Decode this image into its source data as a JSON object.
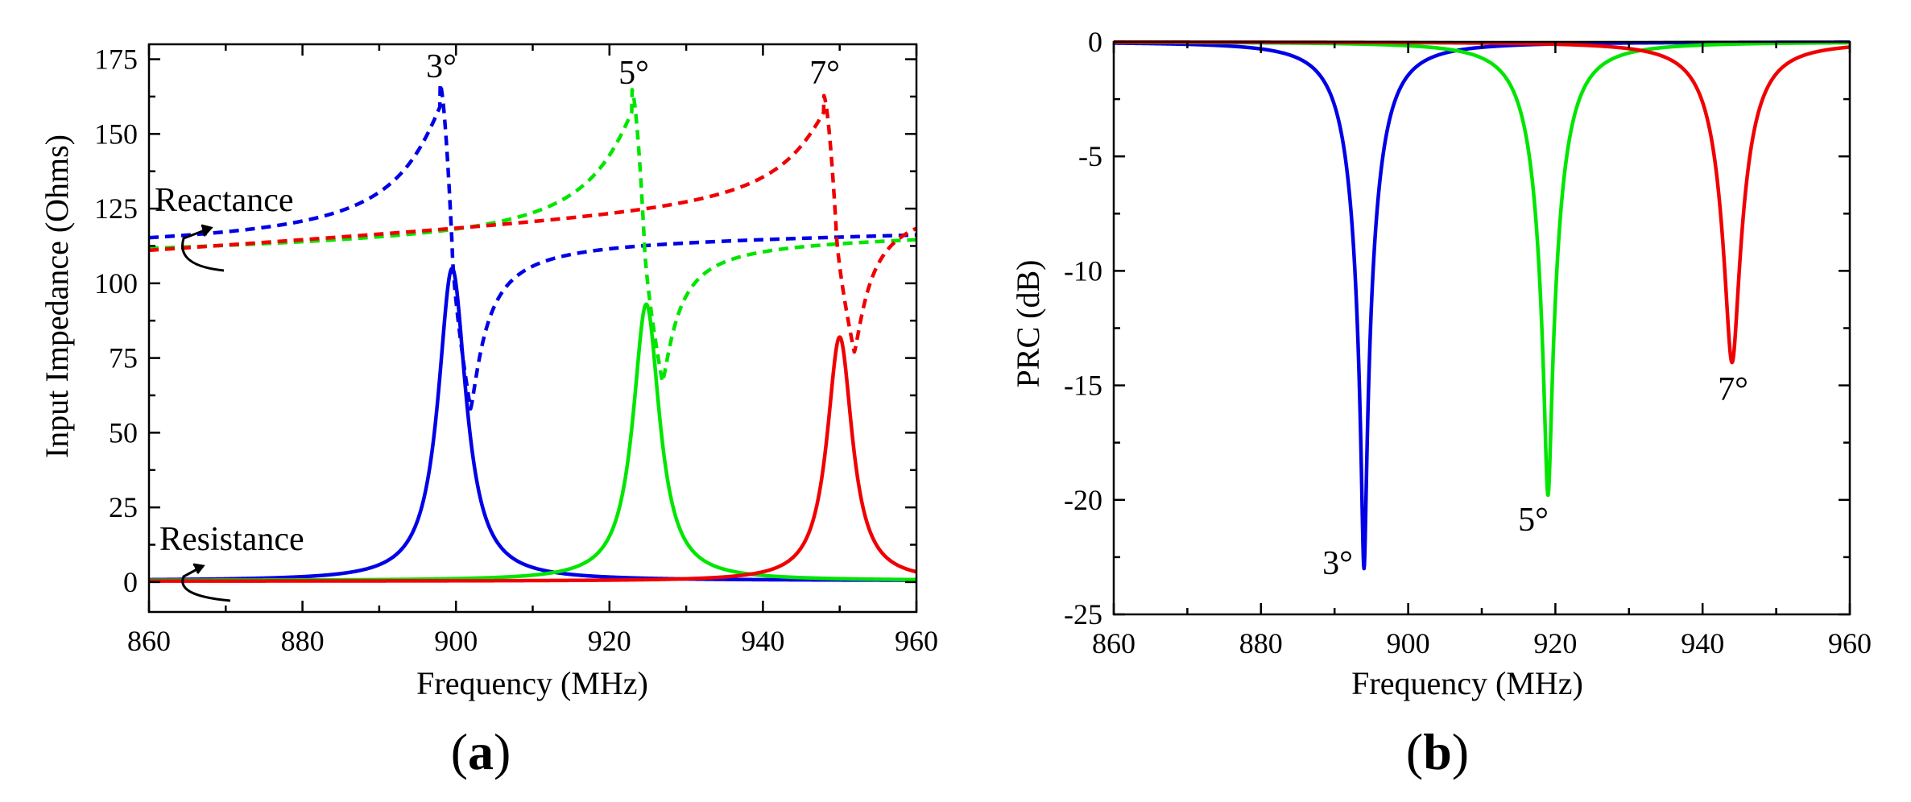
{
  "chart_data": [
    {
      "id": "a",
      "panel_label": "a",
      "type": "line",
      "xlabel": "Frequency (MHz)",
      "ylabel": "Input Impedance (Ohms)",
      "xlim": [
        860,
        960
      ],
      "ylim": [
        -10,
        180
      ],
      "xticks": [
        860,
        880,
        900,
        920,
        940,
        960
      ],
      "yticks": [
        0,
        25,
        50,
        75,
        100,
        125,
        150,
        175
      ],
      "grid": false,
      "annotations": [
        {
          "key": "reactance",
          "text": "Reactance"
        },
        {
          "key": "resistance",
          "text": "Resistance"
        },
        {
          "key": "a3",
          "text": "3°"
        },
        {
          "key": "a5",
          "text": "5°"
        },
        {
          "key": "a7",
          "text": "7°"
        }
      ],
      "series": [
        {
          "name": "3° Reactance",
          "color": "#0000e6",
          "style": "dashed",
          "kind": "reactance",
          "f0": 899.5,
          "ypeak": 167,
          "ymin": 58,
          "base_start": 112,
          "base_end": 117,
          "w": 0.9
        },
        {
          "name": "5° Reactance",
          "color": "#00e600",
          "style": "dashed",
          "kind": "reactance",
          "f0": 924.5,
          "ypeak": 165,
          "ymin": 67,
          "base_start": 110,
          "base_end": 116,
          "w": 0.9
        },
        {
          "name": "7° Reactance",
          "color": "#f00000",
          "style": "dashed",
          "kind": "reactance",
          "f0": 949.5,
          "ypeak": 163,
          "ymin": 77,
          "base_start": 110,
          "base_end": 126,
          "w": 0.9
        },
        {
          "name": "3° Resistance",
          "color": "#0000e6",
          "style": "solid",
          "kind": "resistance",
          "f0": 899.5,
          "peak": 105,
          "base": 0.5,
          "w": 2.2
        },
        {
          "name": "5° Resistance",
          "color": "#00e600",
          "style": "solid",
          "kind": "resistance",
          "f0": 924.8,
          "peak": 93,
          "base": 0.5,
          "w": 2.1
        },
        {
          "name": "7° Resistance",
          "color": "#f00000",
          "style": "solid",
          "kind": "resistance",
          "f0": 950.0,
          "peak": 82,
          "base": 0.3,
          "w": 2.0
        }
      ]
    },
    {
      "id": "b",
      "panel_label": "b",
      "type": "line",
      "xlabel": "Frequency (MHz)",
      "ylabel": "PRC (dB)",
      "xlim": [
        860,
        960
      ],
      "ylim": [
        -25,
        0
      ],
      "xticks": [
        860,
        880,
        900,
        920,
        940,
        960
      ],
      "yticks": [
        0,
        -5,
        -10,
        -15,
        -20,
        -25
      ],
      "grid": false,
      "annotations": [
        {
          "key": "b3",
          "text": "3°"
        },
        {
          "key": "b5",
          "text": "5°"
        },
        {
          "key": "b7",
          "text": "7°"
        }
      ],
      "series": [
        {
          "name": "3°",
          "color": "#0000e6",
          "style": "solid",
          "kind": "prc",
          "f0": 894.0,
          "min": -23.0,
          "w": 3.8
        },
        {
          "name": "5°",
          "color": "#00e600",
          "style": "solid",
          "kind": "prc",
          "f0": 919.0,
          "min": -19.8,
          "w": 3.8
        },
        {
          "name": "7°",
          "color": "#f00000",
          "style": "solid",
          "kind": "prc",
          "f0": 944.0,
          "min": -14.0,
          "w": 3.8
        }
      ]
    }
  ]
}
